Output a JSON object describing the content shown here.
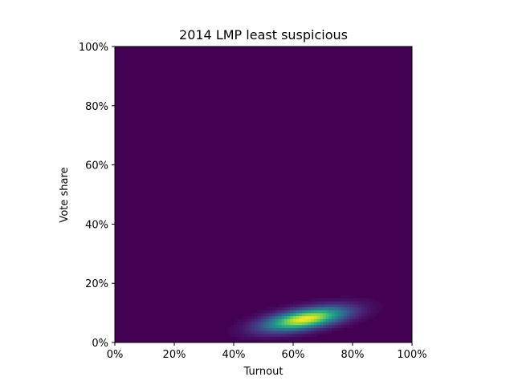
{
  "chart_data": {
    "type": "heatmap",
    "title": "2014 LMP least suspicious",
    "xlabel": "Turnout",
    "ylabel": "Vote share",
    "xlim": [
      0,
      100
    ],
    "ylim": [
      0,
      100
    ],
    "x_ticks": [
      "0%",
      "20%",
      "40%",
      "60%",
      "80%",
      "100%"
    ],
    "y_ticks": [
      "0%",
      "20%",
      "40%",
      "60%",
      "80%",
      "100%"
    ],
    "colormap": "viridis",
    "background_color": "#440154",
    "peak_color": "#fde725",
    "grid": false,
    "legend": "none",
    "density_blob": {
      "peak": {
        "turnout": 64,
        "vote_share": 8
      },
      "sd_turnout": 9,
      "sd_vote_share": 2.6,
      "correlation": 0.55,
      "approx_extent": {
        "turnout": [
          40,
          90
        ],
        "vote_share": [
          2,
          17
        ]
      }
    }
  }
}
